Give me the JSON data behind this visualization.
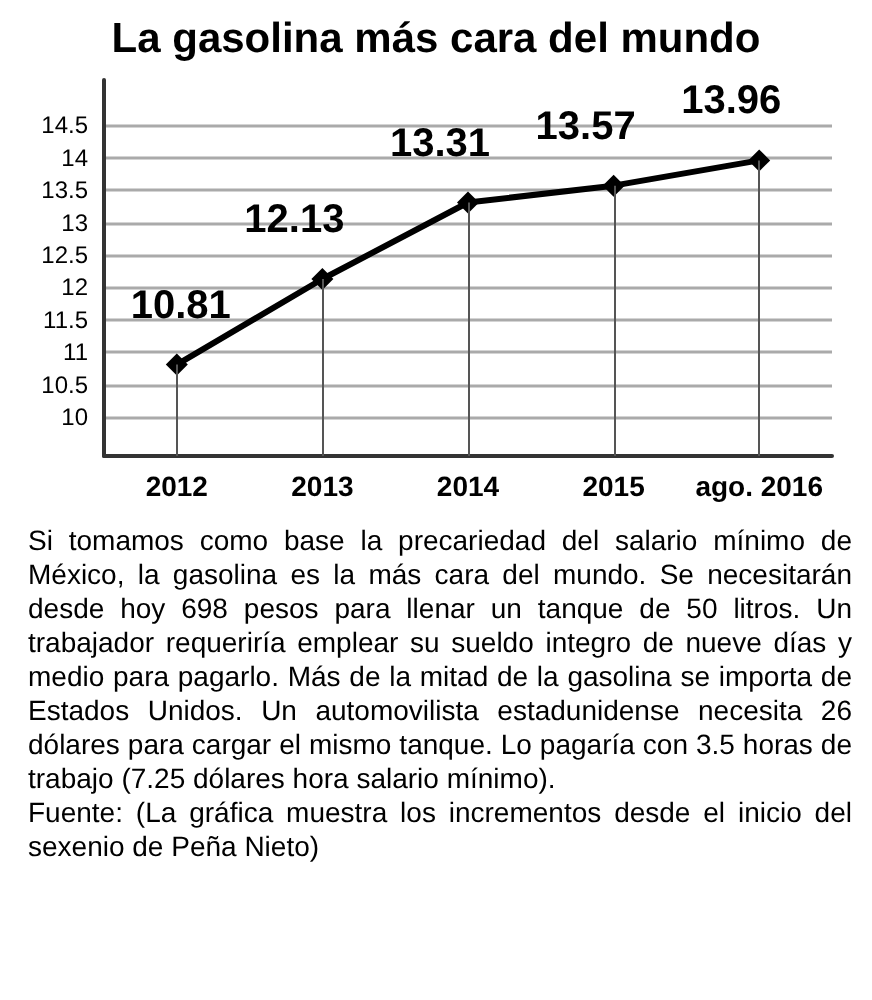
{
  "chart_data": {
    "type": "line",
    "title": "La gasolina más cara del mundo",
    "categories": [
      "2012",
      "2013",
      "2014",
      "2015",
      "ago. 2016"
    ],
    "values": [
      10.81,
      12.13,
      13.31,
      13.57,
      13.96
    ],
    "color": "#000000",
    "marker": "diamond",
    "line_style": "solid",
    "data_labels": true,
    "grid": true,
    "ylim": [
      9.4,
      15.2
    ],
    "yticks": [
      10,
      10.5,
      11,
      11.5,
      12,
      12.5,
      13,
      13.5,
      14,
      14.5
    ],
    "annotations": [
      "Si tomamos como base la precariedad del salario mínimo de México, la gasolina es la más cara del mundo. Se necesitarán desde hoy 698 pesos para llenar un tanque de 50 litros. Un trabajador requeriría emplear su sueldo integro de nueve días y medio para pagarlo. Más de la mitad de la gasolina se importa de Estados Unidos. Un automovilista estadunidense necesita 26 dólares para cargar el mismo tanque. Lo pagaría con 3.5 horas de trabajo (7.25 dólares hora salario mínimo).",
      "Fuente: (La gráfica muestra los incrementos desde el inicio del sexenio de Peña Nieto)"
    ]
  }
}
